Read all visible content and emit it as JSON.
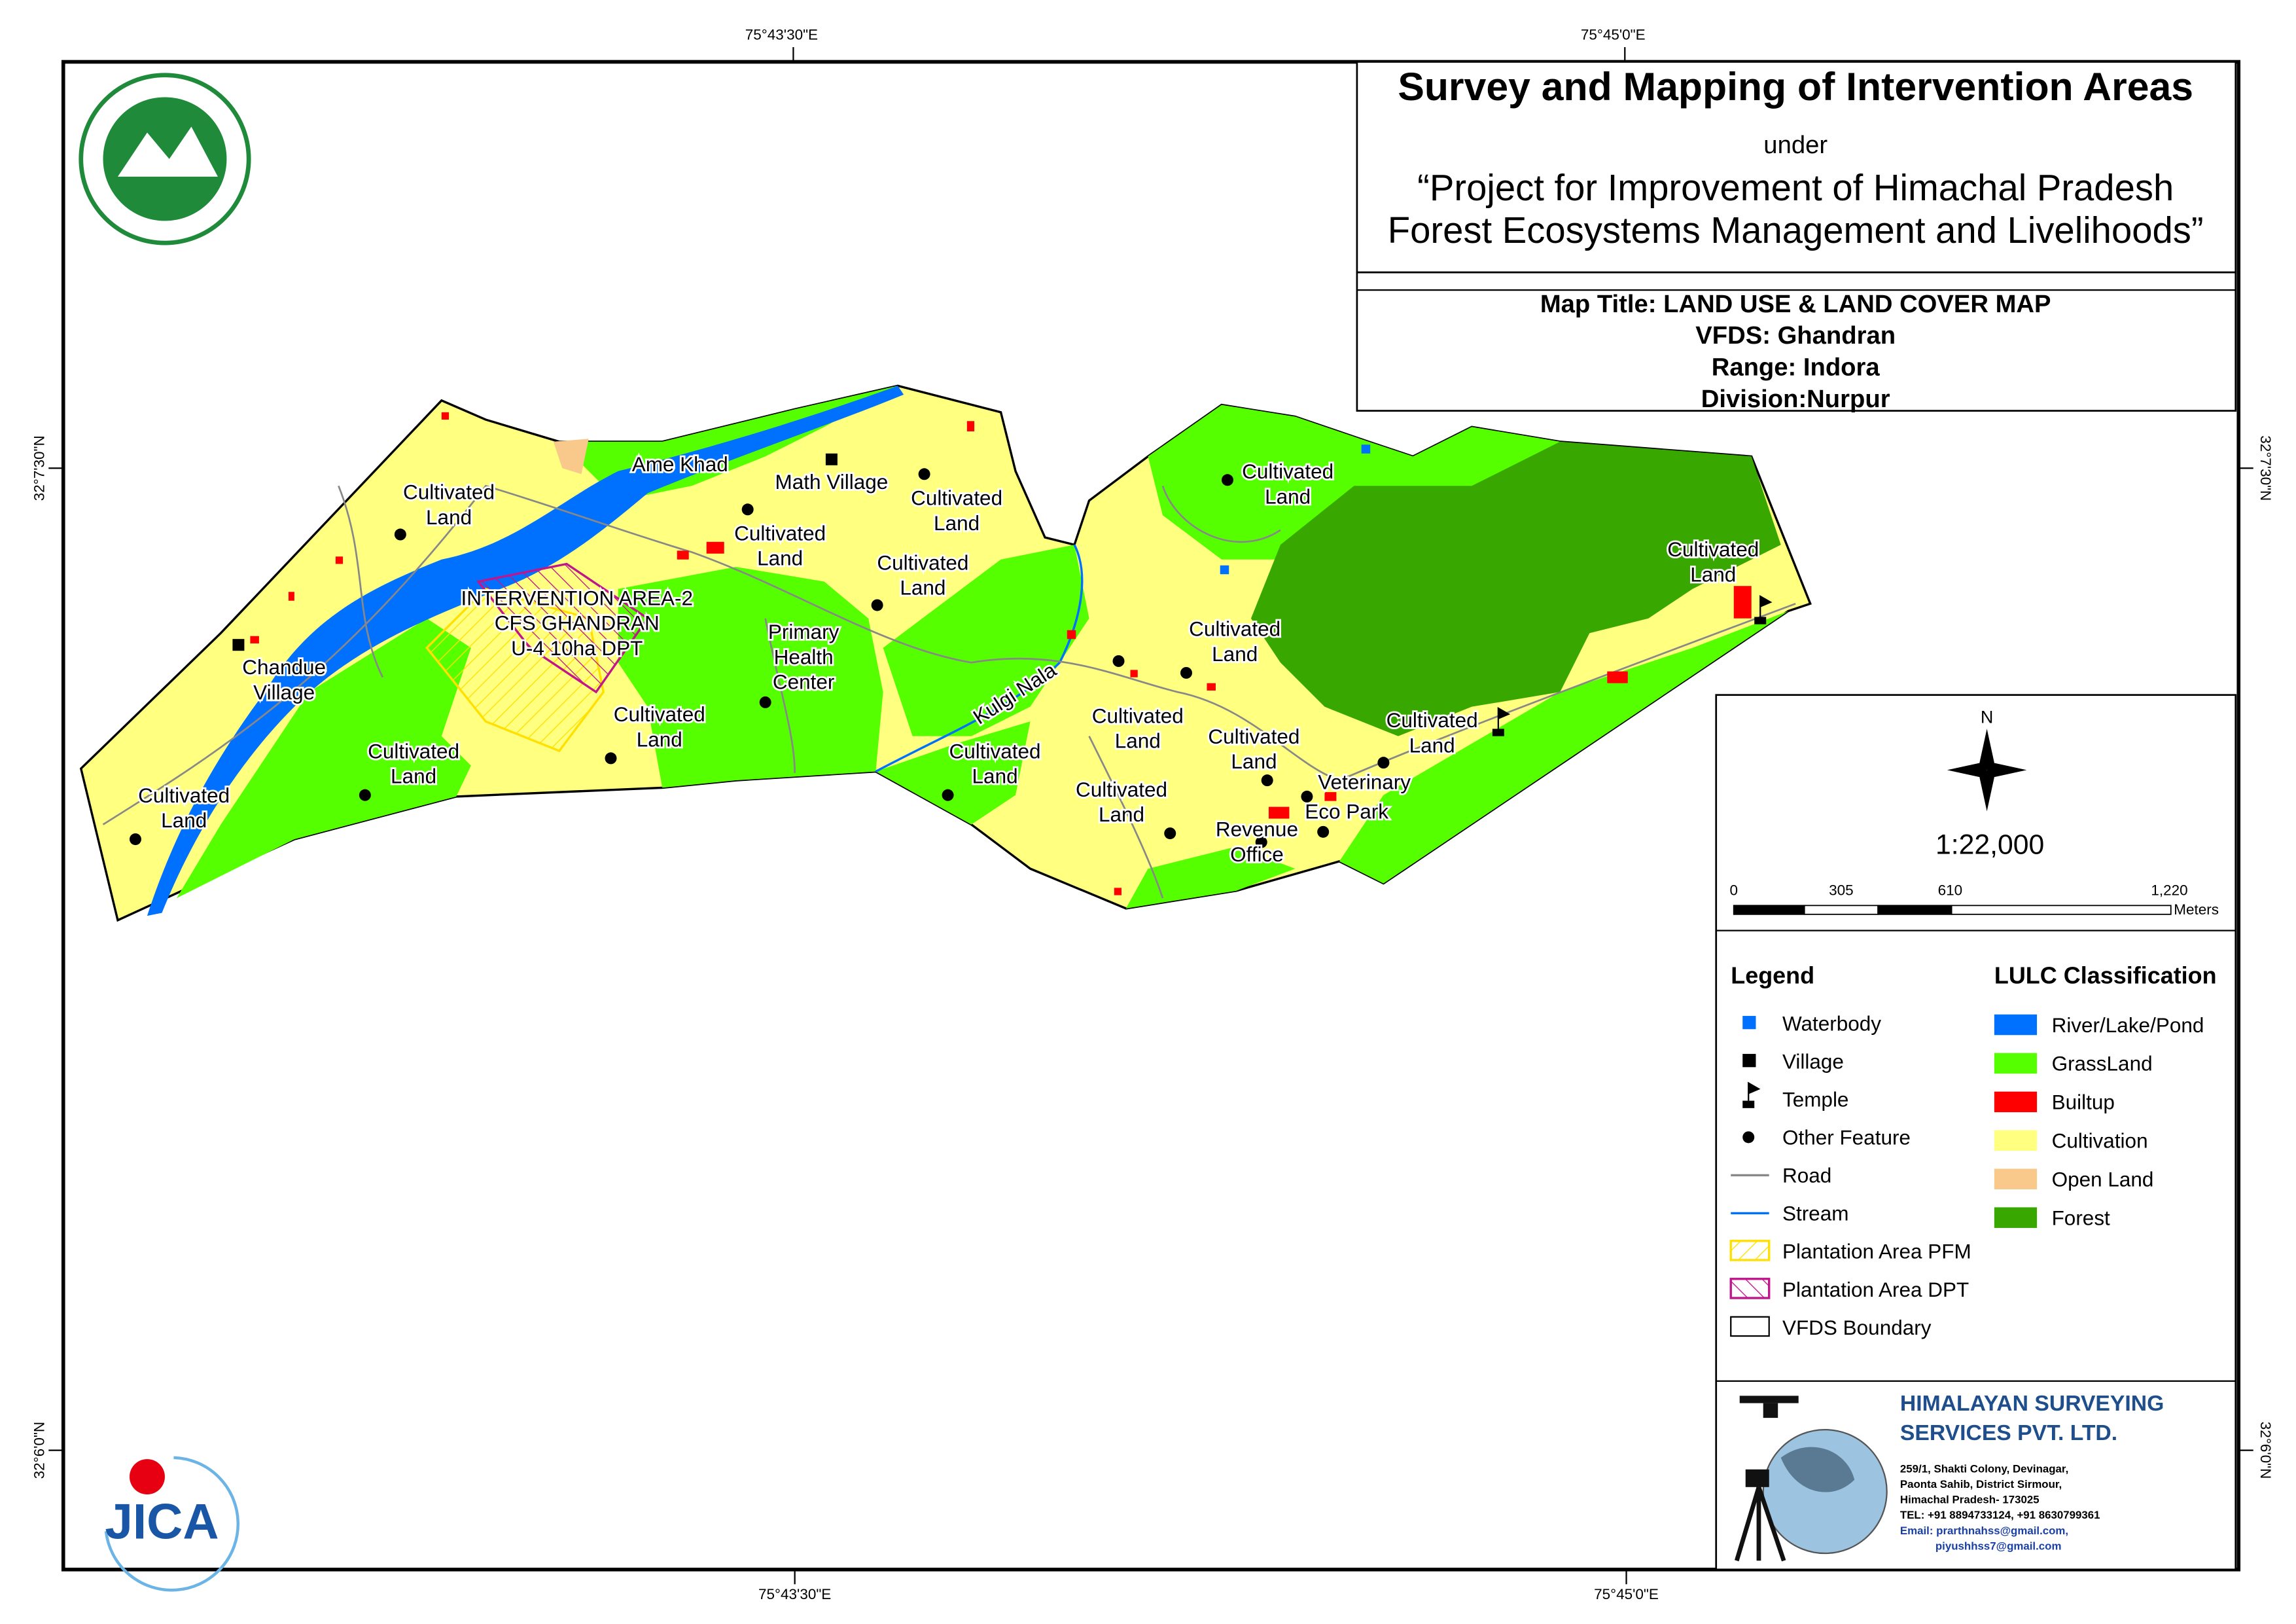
{
  "header": {
    "title": "Survey and Mapping of Intervention Areas",
    "under": "under",
    "project": [
      "“Project for Improvement of Himachal Pradesh",
      "Forest Ecosystems Management and Livelihoods”"
    ]
  },
  "map_info": [
    "Map Title: LAND USE & LAND COVER MAP",
    "VFDS: Ghandran",
    "Range: Indora",
    "Division:Nurpur"
  ],
  "graticule": {
    "top": [
      "75°43'30\"E",
      "75°45'0\"E"
    ],
    "bottom": [
      "75°43'30\"E",
      "75°45'0\"E"
    ],
    "left": [
      "32°7'30\"N",
      "32°6'0\"N"
    ],
    "right": [
      "32°7'30\"N",
      "32°6'0\"N"
    ]
  },
  "places": [
    {
      "lines": [
        "Ame Khad"
      ]
    },
    {
      "lines": [
        "Math Village"
      ]
    },
    {
      "lines": [
        "Cultivated",
        "Land"
      ]
    },
    {
      "lines": [
        "Cultivated",
        "Land"
      ]
    },
    {
      "lines": [
        "Cultivated",
        "Land"
      ]
    },
    {
      "lines": [
        "Cultivated",
        "Land"
      ]
    },
    {
      "lines": [
        "INTERVENTION AREA-2",
        "CFS GHANDRAN",
        "U-4 10ha DPT"
      ]
    },
    {
      "lines": [
        "Chandue",
        "Village"
      ]
    },
    {
      "lines": [
        "Primary",
        "Health",
        "Center"
      ]
    },
    {
      "lines": [
        "Cultivated",
        "Land"
      ]
    },
    {
      "lines": [
        "Cultivated",
        "Land"
      ]
    },
    {
      "lines": [
        "Cultivated",
        "Land"
      ]
    },
    {
      "lines": [
        "Kulgi Nala"
      ]
    },
    {
      "lines": [
        "Cultivated",
        "Land"
      ]
    },
    {
      "lines": [
        "Cultivated",
        "Land"
      ]
    },
    {
      "lines": [
        "Cultivated",
        "Land"
      ]
    },
    {
      "lines": [
        "Cultivated",
        "Land"
      ]
    },
    {
      "lines": [
        "Cultivated",
        "Land"
      ]
    },
    {
      "lines": [
        "Cultivated",
        "Land"
      ]
    },
    {
      "lines": [
        "Veterinary"
      ]
    },
    {
      "lines": [
        "Eco Park"
      ]
    },
    {
      "lines": [
        "Revenue",
        "Office"
      ]
    },
    {
      "lines": [
        "Cultivated",
        "Land"
      ]
    },
    {
      "lines": [
        "Cultivated",
        "Land"
      ]
    }
  ],
  "north": "N",
  "scale": {
    "ratio": "1:22,000",
    "ticks": [
      "0",
      "305",
      "610",
      "1,220"
    ],
    "unit": "Meters"
  },
  "legend": {
    "title": "Legend",
    "items": [
      "Waterbody",
      "Village",
      "Temple",
      "Other Feature",
      "Road",
      "Stream",
      "Plantation Area PFM",
      "Plantation Area DPT",
      "VFDS Boundary"
    ]
  },
  "lulc": {
    "title": "LULC Classification",
    "items": [
      {
        "label": "River/Lake/Pond",
        "color": "#0070ff"
      },
      {
        "label": "GrassLand",
        "color": "#55ff00"
      },
      {
        "label": "Builtup",
        "color": "#ff0000"
      },
      {
        "label": "Cultivation",
        "color": "#ffff80"
      },
      {
        "label": "Open Land",
        "color": "#f8c98a"
      },
      {
        "label": "Forest",
        "color": "#38a800"
      }
    ]
  },
  "logo": "JICA",
  "company": {
    "name": [
      "HIMALAYAN SURVEYING",
      "SERVICES PVT. LTD."
    ],
    "address": [
      "259/1, Shakti Colony, Devinagar,",
      "Paonta Sahib, District Sirmour,",
      "Himachal Pradesh- 173025",
      "TEL: +91 8894733124, +91 8630799361",
      "Email: prarthnahss@gmail.com,",
      "piyushhss7@gmail.com"
    ]
  }
}
